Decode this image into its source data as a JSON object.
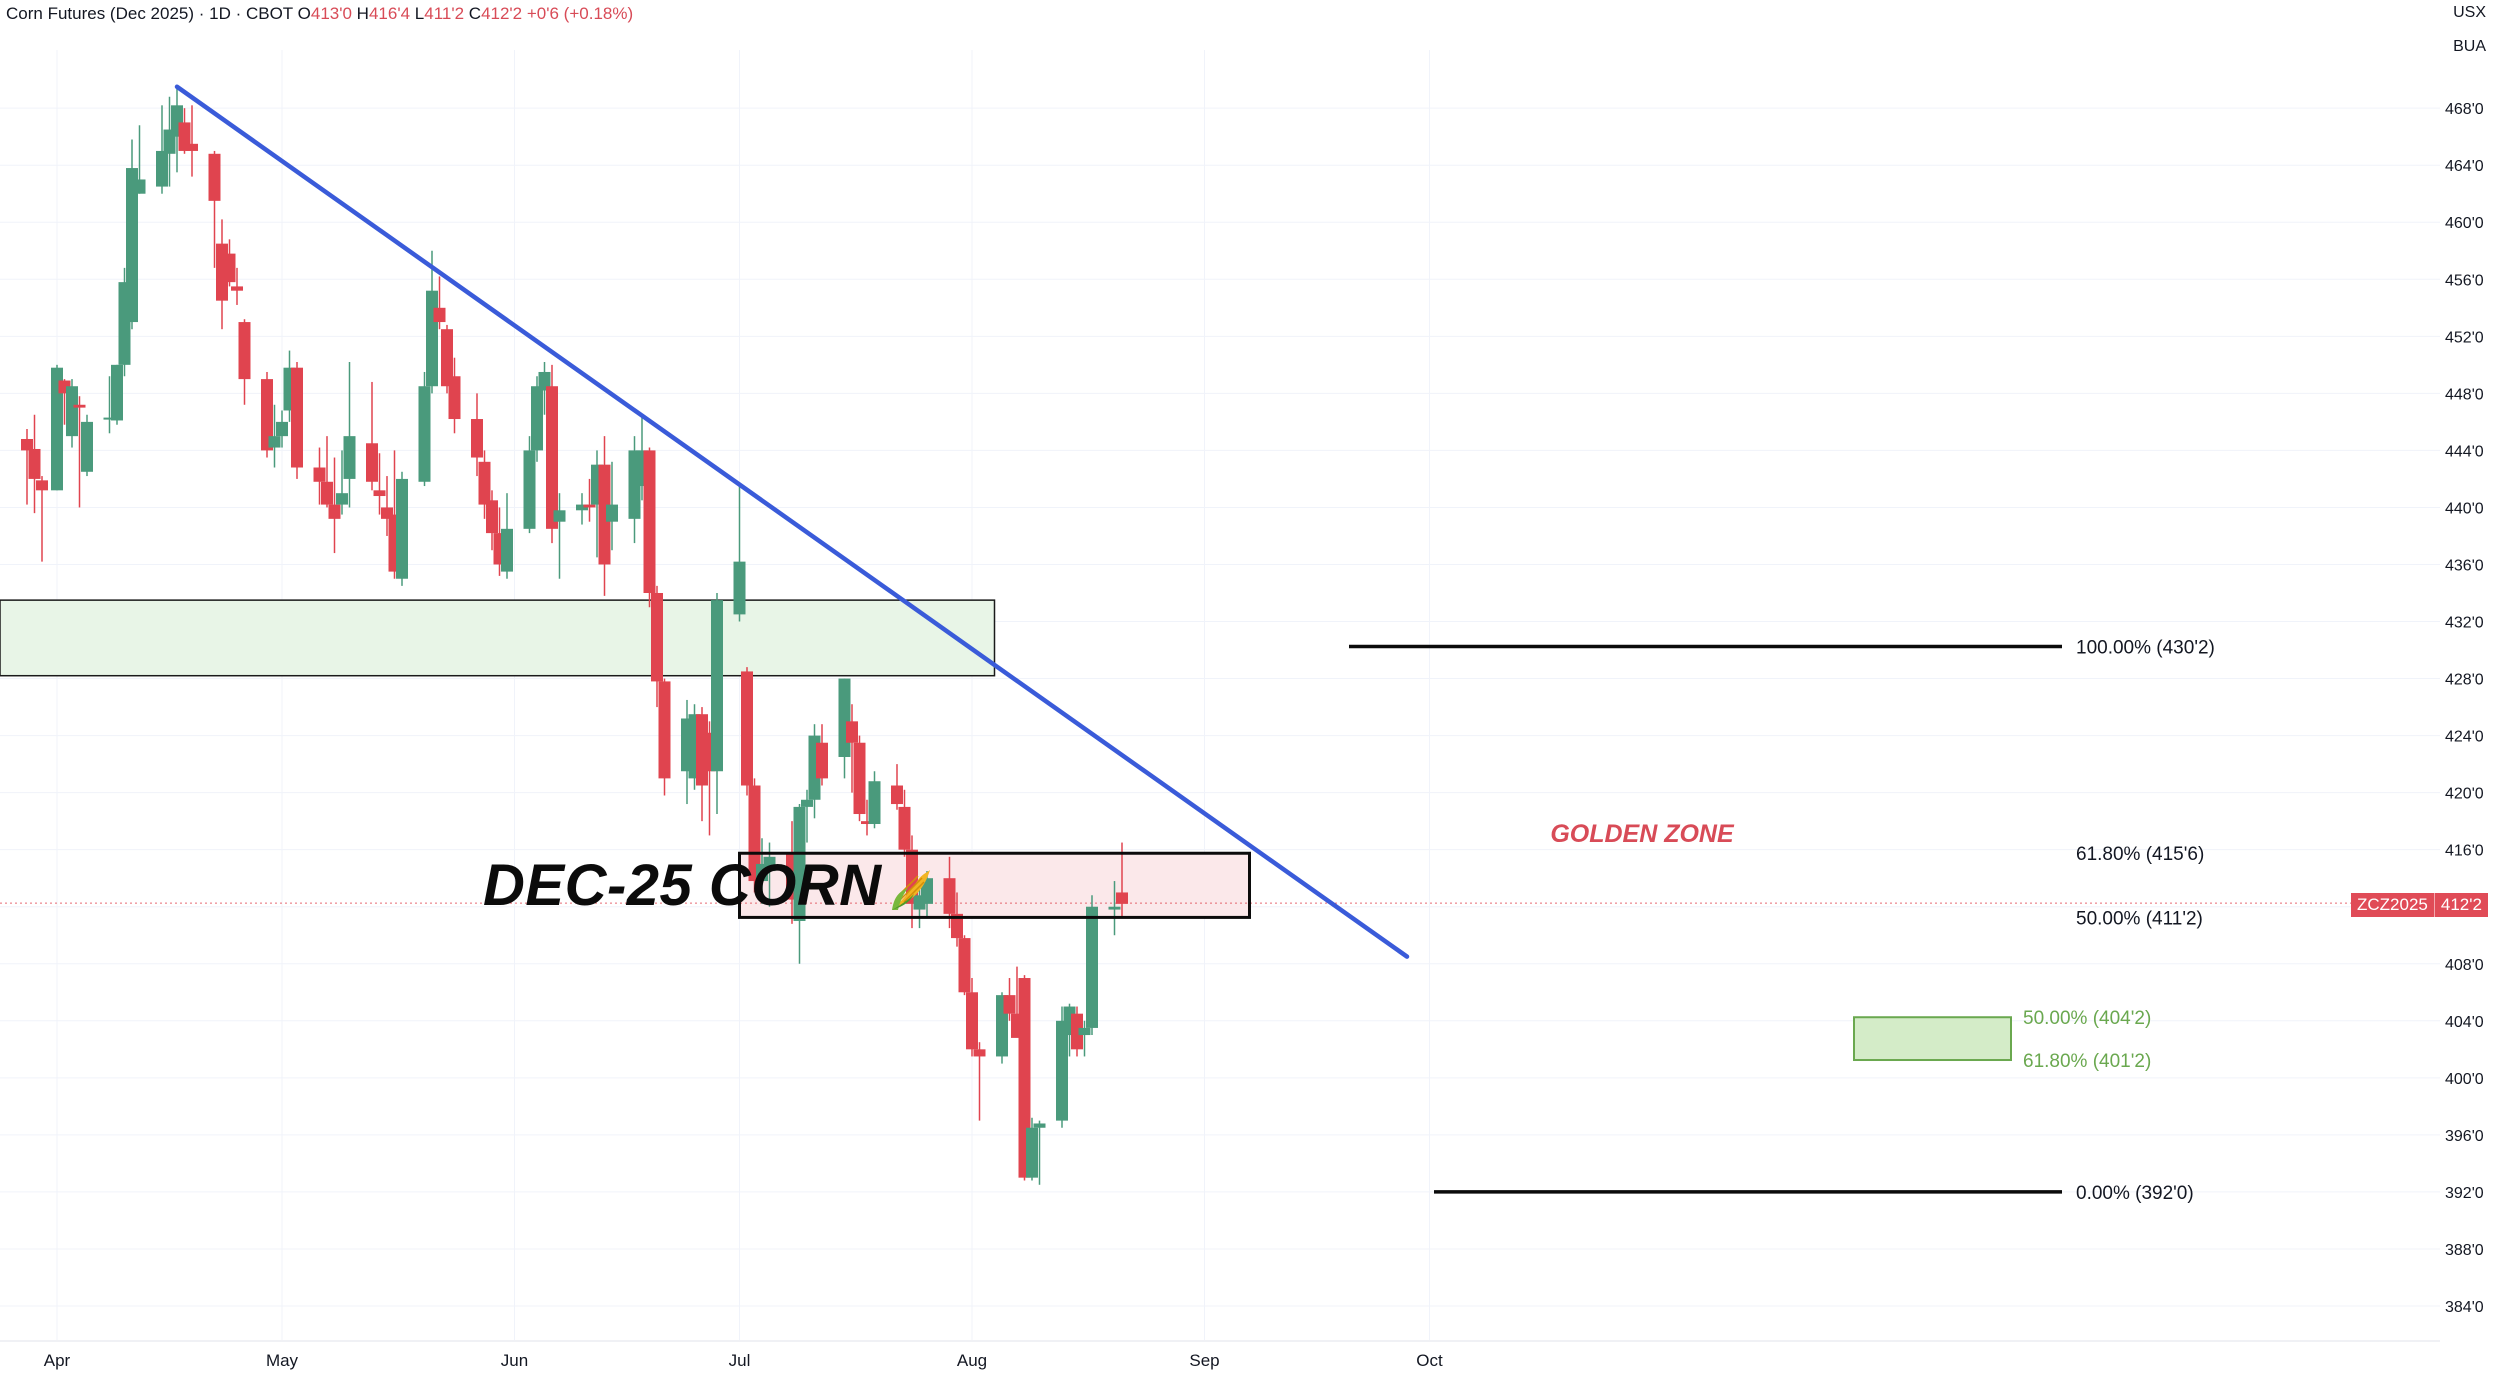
{
  "header": {
    "title": "Corn Futures (Dec 2025) · 1D · CBOT",
    "o_label": "O",
    "o_value": "413'0",
    "h_label": "H",
    "h_value": "416'4",
    "l_label": "L",
    "l_value": "411'2",
    "c_label": "C",
    "c_value": "412'2",
    "change": "+0'6 (+0.18%)"
  },
  "corner": {
    "currency": "USX",
    "unit": "BUA"
  },
  "annotation_title": "DEC-25 CORN",
  "golden_zone_label": "GOLDEN ZONE",
  "price_tag": {
    "symbol": "ZCZ2025",
    "value": "412'2"
  },
  "colors": {
    "up": "#4a9a7c",
    "down": "#e0444f",
    "trend": "#3a5bd9",
    "golden": "#d84b57",
    "support_fill": "#e8f5e7",
    "target": "#6aa84f"
  },
  "chart_data": {
    "type": "candlestick",
    "title": "Corn Futures (Dec 2025)",
    "xlabel": "",
    "ylabel": "",
    "ylim": [
      382.5,
      471
    ],
    "y_ticks": [
      "384'0",
      "388'0",
      "392'0",
      "396'0",
      "400'0",
      "404'0",
      "408'0",
      "412'0",
      "416'0",
      "420'0",
      "424'0",
      "428'0",
      "432'0",
      "436'0",
      "440'0",
      "444'0",
      "448'0",
      "452'0",
      "456'0",
      "460'0",
      "464'0",
      "468'0"
    ],
    "x_ticks": [
      "Apr",
      "May",
      "Jun",
      "Jul",
      "Aug",
      "Sep",
      "Oct"
    ],
    "x_tick_days": [
      0,
      30,
      61,
      91,
      122,
      153,
      183
    ],
    "candles": [
      {
        "d": -4,
        "o": 444.8,
        "h": 445.5,
        "l": 440.2,
        "c": 444.0
      },
      {
        "d": -3,
        "o": 444.1,
        "h": 446.5,
        "l": 439.6,
        "c": 442.0
      },
      {
        "d": -2,
        "o": 441.9,
        "h": 442.2,
        "l": 436.2,
        "c": 441.2
      },
      {
        "d": 0,
        "o": 441.2,
        "h": 450.0,
        "l": 441.2,
        "c": 449.8
      },
      {
        "d": 1,
        "o": 448.9,
        "h": 449.0,
        "l": 445.8,
        "c": 448.0
      },
      {
        "d": 2,
        "o": 445.0,
        "h": 449.0,
        "l": 444.2,
        "c": 448.5
      },
      {
        "d": 3,
        "o": 447.2,
        "h": 447.8,
        "l": 440.0,
        "c": 447.0
      },
      {
        "d": 4,
        "o": 442.5,
        "h": 446.5,
        "l": 442.2,
        "c": 446.0
      },
      {
        "d": 7,
        "o": 446.2,
        "h": 449.2,
        "l": 445.2,
        "c": 446.3
      },
      {
        "d": 8,
        "o": 446.1,
        "h": 450.0,
        "l": 445.8,
        "c": 450.0
      },
      {
        "d": 9,
        "o": 450.0,
        "h": 456.8,
        "l": 449.2,
        "c": 455.8
      },
      {
        "d": 10,
        "o": 453.0,
        "h": 465.8,
        "l": 452.5,
        "c": 463.8
      },
      {
        "d": 11,
        "o": 462.0,
        "h": 466.8,
        "l": 462.0,
        "c": 463.0
      },
      {
        "d": 14,
        "o": 462.5,
        "h": 468.2,
        "l": 462.0,
        "c": 465.0
      },
      {
        "d": 15,
        "o": 464.8,
        "h": 468.8,
        "l": 462.5,
        "c": 466.5
      },
      {
        "d": 16,
        "o": 466.0,
        "h": 469.5,
        "l": 463.5,
        "c": 468.2
      },
      {
        "d": 17,
        "o": 467.0,
        "h": 468.0,
        "l": 464.8,
        "c": 465.0
      },
      {
        "d": 18,
        "o": 465.5,
        "h": 468.2,
        "l": 463.2,
        "c": 465.0
      },
      {
        "d": 21,
        "o": 464.8,
        "h": 465.0,
        "l": 456.8,
        "c": 461.5
      },
      {
        "d": 22,
        "o": 458.5,
        "h": 460.2,
        "l": 452.5,
        "c": 454.5
      },
      {
        "d": 23,
        "o": 457.8,
        "h": 458.8,
        "l": 455.5,
        "c": 455.8
      },
      {
        "d": 24,
        "o": 455.5,
        "h": 456.8,
        "l": 454.2,
        "c": 455.2
      },
      {
        "d": 25,
        "o": 453.0,
        "h": 453.2,
        "l": 447.2,
        "c": 449.0
      },
      {
        "d": 28,
        "o": 449.0,
        "h": 449.5,
        "l": 443.5,
        "c": 444.0
      },
      {
        "d": 29,
        "o": 444.2,
        "h": 447.2,
        "l": 442.8,
        "c": 445.0
      },
      {
        "d": 30,
        "o": 445.0,
        "h": 446.8,
        "l": 444.2,
        "c": 446.0
      },
      {
        "d": 31,
        "o": 446.8,
        "h": 451.0,
        "l": 446.0,
        "c": 449.8
      },
      {
        "d": 32,
        "o": 449.8,
        "h": 450.2,
        "l": 442.0,
        "c": 442.8
      },
      {
        "d": 35,
        "o": 442.8,
        "h": 444.2,
        "l": 440.2,
        "c": 441.8
      },
      {
        "d": 36,
        "o": 441.8,
        "h": 445.0,
        "l": 440.0,
        "c": 440.2
      },
      {
        "d": 37,
        "o": 440.2,
        "h": 443.5,
        "l": 436.8,
        "c": 439.2
      },
      {
        "d": 38,
        "o": 440.2,
        "h": 444.0,
        "l": 439.5,
        "c": 441.0
      },
      {
        "d": 39,
        "o": 442.0,
        "h": 450.2,
        "l": 440.0,
        "c": 445.0
      },
      {
        "d": 42,
        "o": 444.5,
        "h": 448.8,
        "l": 441.2,
        "c": 441.8
      },
      {
        "d": 43,
        "o": 441.2,
        "h": 443.8,
        "l": 439.5,
        "c": 440.8
      },
      {
        "d": 44,
        "o": 440.0,
        "h": 442.2,
        "l": 438.0,
        "c": 439.2
      },
      {
        "d": 45,
        "o": 439.5,
        "h": 444.0,
        "l": 435.0,
        "c": 435.5
      },
      {
        "d": 46,
        "o": 435.0,
        "h": 442.5,
        "l": 434.5,
        "c": 442.0
      },
      {
        "d": 49,
        "o": 441.8,
        "h": 449.5,
        "l": 441.5,
        "c": 448.5
      },
      {
        "d": 50,
        "o": 448.5,
        "h": 458.0,
        "l": 448.0,
        "c": 455.2
      },
      {
        "d": 51,
        "o": 454.0,
        "h": 456.2,
        "l": 452.5,
        "c": 453.0
      },
      {
        "d": 52,
        "o": 452.5,
        "h": 452.8,
        "l": 448.0,
        "c": 448.5
      },
      {
        "d": 53,
        "o": 449.2,
        "h": 450.5,
        "l": 445.2,
        "c": 446.2
      },
      {
        "d": 56,
        "o": 446.2,
        "h": 448.0,
        "l": 442.2,
        "c": 443.5
      },
      {
        "d": 57,
        "o": 443.2,
        "h": 444.0,
        "l": 439.2,
        "c": 440.2
      },
      {
        "d": 58,
        "o": 440.5,
        "h": 441.2,
        "l": 437.0,
        "c": 438.2
      },
      {
        "d": 59,
        "o": 438.2,
        "h": 440.0,
        "l": 435.2,
        "c": 436.0
      },
      {
        "d": 60,
        "o": 435.5,
        "h": 441.0,
        "l": 435.0,
        "c": 438.5
      },
      {
        "d": 63,
        "o": 438.5,
        "h": 445.0,
        "l": 438.2,
        "c": 444.0
      },
      {
        "d": 64,
        "o": 444.0,
        "h": 449.2,
        "l": 443.2,
        "c": 448.5
      },
      {
        "d": 65,
        "o": 448.2,
        "h": 450.2,
        "l": 446.5,
        "c": 449.5
      },
      {
        "d": 66,
        "o": 448.5,
        "h": 450.0,
        "l": 437.5,
        "c": 438.5
      },
      {
        "d": 67,
        "o": 439.0,
        "h": 441.0,
        "l": 435.0,
        "c": 439.8
      },
      {
        "d": 70,
        "o": 439.8,
        "h": 441.0,
        "l": 438.8,
        "c": 440.2
      },
      {
        "d": 71,
        "o": 440.2,
        "h": 442.0,
        "l": 439.0,
        "c": 440.0
      },
      {
        "d": 72,
        "o": 440.2,
        "h": 444.0,
        "l": 436.5,
        "c": 443.0
      },
      {
        "d": 73,
        "o": 443.0,
        "h": 445.0,
        "l": 433.8,
        "c": 436.0
      },
      {
        "d": 74,
        "o": 439.0,
        "h": 443.2,
        "l": 437.0,
        "c": 440.2
      },
      {
        "d": 77,
        "o": 439.2,
        "h": 445.0,
        "l": 437.5,
        "c": 444.0
      },
      {
        "d": 78,
        "o": 441.5,
        "h": 446.5,
        "l": 440.5,
        "c": 444.0
      },
      {
        "d": 79,
        "o": 444.0,
        "h": 444.2,
        "l": 433.0,
        "c": 434.0
      },
      {
        "d": 80,
        "o": 434.0,
        "h": 434.5,
        "l": 426.0,
        "c": 427.8
      },
      {
        "d": 81,
        "o": 427.8,
        "h": 428.0,
        "l": 419.8,
        "c": 421.0
      },
      {
        "d": 84,
        "o": 421.5,
        "h": 426.5,
        "l": 419.2,
        "c": 425.2
      },
      {
        "d": 85,
        "o": 421.0,
        "h": 426.2,
        "l": 420.2,
        "c": 425.5
      },
      {
        "d": 86,
        "o": 425.5,
        "h": 426.0,
        "l": 418.0,
        "c": 420.5
      },
      {
        "d": 87,
        "o": 424.2,
        "h": 425.0,
        "l": 417.0,
        "c": 421.5
      },
      {
        "d": 88,
        "o": 421.5,
        "h": 434.0,
        "l": 418.5,
        "c": 433.5
      },
      {
        "d": 91,
        "o": 432.5,
        "h": 441.5,
        "l": 432.0,
        "c": 436.2
      },
      {
        "d": 92,
        "o": 428.5,
        "h": 428.8,
        "l": 419.8,
        "c": 420.5
      },
      {
        "d": 93,
        "o": 420.5,
        "h": 421.0,
        "l": 413.0,
        "c": 413.8
      },
      {
        "d": 94,
        "o": 413.8,
        "h": 416.8,
        "l": 412.2,
        "c": 415.0
      },
      {
        "d": 95,
        "o": 414.5,
        "h": 416.5,
        "l": 412.0,
        "c": 415.5
      },
      {
        "d": 98,
        "o": 415.8,
        "h": 418.0,
        "l": 410.8,
        "c": 412.5
      },
      {
        "d": 99,
        "o": 411.0,
        "h": 419.2,
        "l": 408.0,
        "c": 419.0
      },
      {
        "d": 100,
        "o": 419.0,
        "h": 420.2,
        "l": 416.5,
        "c": 419.5
      },
      {
        "d": 101,
        "o": 419.5,
        "h": 424.8,
        "l": 418.2,
        "c": 424.0
      },
      {
        "d": 102,
        "o": 423.5,
        "h": 424.8,
        "l": 420.5,
        "c": 421.0
      },
      {
        "d": 105,
        "o": 422.5,
        "h": 428.0,
        "l": 421.0,
        "c": 428.0
      },
      {
        "d": 106,
        "o": 425.0,
        "h": 426.2,
        "l": 420.0,
        "c": 423.5
      },
      {
        "d": 107,
        "o": 423.5,
        "h": 424.0,
        "l": 418.0,
        "c": 418.5
      },
      {
        "d": 108,
        "o": 418.0,
        "h": 419.5,
        "l": 417.0,
        "c": 417.8
      },
      {
        "d": 109,
        "o": 417.8,
        "h": 421.5,
        "l": 417.5,
        "c": 420.8
      },
      {
        "d": 112,
        "o": 420.5,
        "h": 422.0,
        "l": 418.8,
        "c": 419.2
      },
      {
        "d": 113,
        "o": 419.0,
        "h": 420.2,
        "l": 415.5,
        "c": 416.0
      },
      {
        "d": 114,
        "o": 416.0,
        "h": 417.0,
        "l": 410.5,
        "c": 412.2
      },
      {
        "d": 115,
        "o": 411.8,
        "h": 413.5,
        "l": 410.5,
        "c": 412.8
      },
      {
        "d": 116,
        "o": 412.2,
        "h": 414.5,
        "l": 411.2,
        "c": 414.0
      },
      {
        "d": 119,
        "o": 414.0,
        "h": 415.5,
        "l": 410.5,
        "c": 411.5
      },
      {
        "d": 120,
        "o": 411.5,
        "h": 413.0,
        "l": 409.2,
        "c": 409.8
      },
      {
        "d": 121,
        "o": 409.8,
        "h": 410.0,
        "l": 405.8,
        "c": 406.0
      },
      {
        "d": 122,
        "o": 406.0,
        "h": 407.0,
        "l": 401.5,
        "c": 402.0
      },
      {
        "d": 123,
        "o": 402.0,
        "h": 402.5,
        "l": 397.0,
        "c": 401.5
      },
      {
        "d": 126,
        "o": 401.5,
        "h": 406.0,
        "l": 401.0,
        "c": 405.8
      },
      {
        "d": 127,
        "o": 405.8,
        "h": 407.0,
        "l": 404.0,
        "c": 404.5
      },
      {
        "d": 128,
        "o": 404.5,
        "h": 407.8,
        "l": 403.0,
        "c": 402.8
      },
      {
        "d": 129,
        "o": 407.0,
        "h": 407.2,
        "l": 392.8,
        "c": 393.0
      },
      {
        "d": 130,
        "o": 393.0,
        "h": 397.2,
        "l": 392.8,
        "c": 396.5
      },
      {
        "d": 131,
        "o": 396.5,
        "h": 397.0,
        "l": 392.5,
        "c": 396.8
      },
      {
        "d": 134,
        "o": 397.0,
        "h": 405.0,
        "l": 396.5,
        "c": 404.0
      },
      {
        "d": 135,
        "o": 403.0,
        "h": 405.2,
        "l": 401.5,
        "c": 405.0
      },
      {
        "d": 136,
        "o": 404.5,
        "h": 405.0,
        "l": 401.5,
        "c": 402.0
      },
      {
        "d": 137,
        "o": 403.0,
        "h": 404.0,
        "l": 401.5,
        "c": 403.5
      },
      {
        "d": 138,
        "o": 403.5,
        "h": 412.8,
        "l": 403.0,
        "c": 412.0
      },
      {
        "d": 141,
        "o": 411.8,
        "h": 413.8,
        "l": 410.0,
        "c": 412.0
      },
      {
        "d": 142,
        "o": 413.0,
        "h": 416.5,
        "l": 411.2,
        "c": 412.2
      }
    ],
    "fibonacci": [
      {
        "label": "100.00% (430'2)",
        "value": 430.25
      },
      {
        "label": "61.80% (415'6)",
        "value": 415.75
      },
      {
        "label": "50.00% (411'2)",
        "value": 411.25
      },
      {
        "label": "0.00% (392'0)",
        "value": 392.0
      }
    ],
    "target_zone": [
      {
        "label": "50.00% (404'2)",
        "value": 404.25
      },
      {
        "label": "61.80% (401'2)",
        "value": 401.25
      }
    ],
    "trendline": {
      "from": {
        "d": 16,
        "price": 469.5
      },
      "to": {
        "d": 180,
        "price": 408.5
      }
    },
    "support_zone": {
      "from_price": 428.2,
      "to_price": 433.5,
      "from_d": -5,
      "to_d": 125
    },
    "golden_zone": {
      "from_d": 91,
      "to_d": 159,
      "low": 411.25,
      "high": 415.75
    },
    "current_price": 412.25
  }
}
